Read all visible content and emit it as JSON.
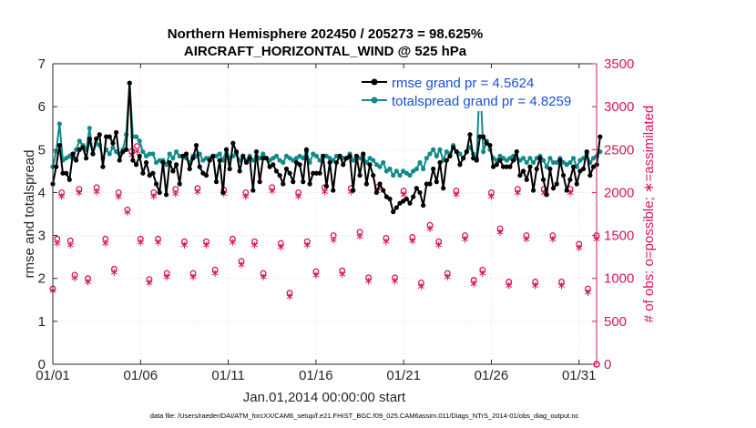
{
  "chart_data": {
    "type": "line",
    "title_line1": "Northern Hemisphere 202450 / 205273 = 98.625%",
    "title_line2": "AIRCRAFT_HORIZONTAL_WIND @ 525 hPa",
    "xlabel": "Jan.01,2014 00:00:00 start",
    "ylabel_left": "rmse and totalspread",
    "ylabel_right": "# of obs: o=possible; ∗=assimilated",
    "footer": "data file: /Users/raeder/DAI/ATM_forcXX/CAM6_setup/f.e21.FHIST_BGC.f09_025.CAM6assim.011/Diags_NTrS_2014-01/obs_diag_output.nc",
    "x_tick_labels": [
      "01/01",
      "01/06",
      "01/11",
      "01/16",
      "01/21",
      "01/26",
      "01/31"
    ],
    "x_tick_days": [
      1,
      6,
      11,
      16,
      21,
      26,
      31
    ],
    "xlim": [
      1,
      32
    ],
    "ylim_left": [
      0,
      7
    ],
    "left_ticks": [
      "0",
      "1",
      "2",
      "3",
      "4",
      "5",
      "6",
      "7"
    ],
    "ylim_right": [
      0,
      3500
    ],
    "right_ticks": [
      "0",
      "500",
      "1000",
      "1500",
      "2000",
      "2500",
      "3000",
      "3500"
    ],
    "legend_position": "top-right",
    "colors": {
      "rmse": "#000000",
      "spread": "#118a8a",
      "obs": "#d4145a"
    },
    "series": [
      {
        "name": "rmse grand pr = 4.5624",
        "values": [
          4.2,
          4.6,
          5.1,
          4.45,
          4.45,
          4.3,
          4.9,
          4.75,
          5.0,
          5.05,
          4.8,
          5.25,
          4.9,
          5.25,
          5.35,
          4.6,
          5.3,
          5.3,
          5.15,
          5.4,
          4.75,
          4.95,
          5.0,
          6.55,
          4.75,
          4.65,
          4.85,
          4.45,
          4.7,
          4.4,
          4.45,
          4.2,
          4.0,
          4.7,
          3.95,
          4.7,
          4.5,
          4.65,
          4.2,
          4.85,
          4.9,
          4.55,
          4.8,
          5.1,
          4.6,
          4.45,
          4.4,
          4.75,
          4.85,
          4.25,
          4.75,
          4.0,
          5.0,
          4.55,
          5.15,
          4.95,
          4.5,
          4.85,
          4.7,
          4.8,
          4.05,
          4.95,
          4.25,
          4.8,
          4.8,
          4.6,
          4.65,
          4.5,
          4.4,
          4.2,
          4.55,
          4.45,
          4.25,
          4.7,
          4.65,
          4.25,
          5.0,
          4.2,
          4.45,
          4.45,
          4.45,
          4.85,
          4.15,
          4.7,
          4.05,
          4.7,
          4.85,
          4.65,
          4.8,
          4.85,
          4.05,
          4.85,
          4.4,
          4.9,
          4.2,
          4.65,
          4.4,
          4.0,
          4.2,
          4.05,
          3.9,
          3.85,
          3.55,
          3.65,
          3.75,
          3.8,
          3.85,
          3.75,
          3.9,
          4.1,
          4.0,
          3.7,
          4.2,
          4.2,
          4.55,
          4.25,
          4.7,
          4.1,
          4.75,
          4.85,
          5.05,
          4.95,
          4.65,
          4.8,
          4.95,
          5.35,
          4.8,
          4.75,
          5.3,
          5.3,
          5.15,
          5.1,
          4.6,
          4.65,
          4.75,
          4.6,
          4.6,
          4.6,
          4.75,
          4.95,
          4.4,
          4.5,
          4.3,
          4.6,
          4.05,
          4.55,
          4.8,
          4.3,
          3.95,
          4.55,
          4.1,
          4.2,
          4.75,
          4.4,
          4.05,
          4.3,
          4.6,
          4.2,
          4.5,
          4.55,
          4.95,
          4.4,
          4.6,
          4.65,
          5.3
        ]
      },
      {
        "name": "totalspread grand pr = 4.8259",
        "values": [
          4.6,
          4.95,
          5.6,
          4.75,
          4.8,
          4.85,
          4.8,
          5.0,
          5.2,
          5.1,
          5.0,
          5.5,
          4.9,
          5.15,
          5.1,
          4.8,
          5.0,
          4.9,
          5.05,
          4.95,
          4.9,
          5.0,
          5.35,
          6.55,
          5.3,
          5.3,
          5.2,
          4.95,
          4.85,
          4.9,
          4.9,
          4.7,
          4.75,
          4.75,
          4.65,
          4.9,
          4.8,
          4.95,
          4.85,
          4.85,
          4.8,
          4.7,
          4.85,
          4.85,
          4.9,
          4.75,
          4.8,
          4.8,
          4.85,
          4.85,
          4.9,
          4.75,
          5.0,
          4.8,
          4.85,
          4.9,
          4.75,
          4.85,
          4.75,
          4.85,
          4.75,
          4.85,
          4.8,
          4.9,
          4.8,
          4.75,
          4.8,
          4.85,
          4.75,
          4.7,
          4.85,
          4.8,
          4.75,
          4.8,
          4.85,
          4.8,
          4.95,
          4.7,
          4.9,
          4.85,
          4.75,
          4.85,
          4.85,
          4.8,
          4.75,
          4.85,
          4.85,
          4.8,
          4.8,
          4.9,
          4.75,
          4.85,
          4.8,
          4.85,
          4.7,
          4.8,
          4.75,
          4.65,
          4.6,
          4.7,
          4.5,
          4.55,
          4.4,
          4.5,
          4.4,
          4.5,
          4.45,
          4.4,
          4.5,
          4.55,
          4.7,
          4.55,
          4.8,
          4.9,
          5.0,
          4.85,
          5.0,
          4.75,
          4.95,
          4.9,
          5.1,
          4.95,
          4.9,
          4.8,
          4.95,
          5.05,
          4.9,
          4.8,
          6.7,
          4.95,
          5.2,
          5.0,
          4.8,
          4.75,
          4.85,
          4.8,
          4.75,
          4.8,
          4.85,
          4.8,
          4.75,
          4.8,
          4.7,
          4.8,
          4.7,
          4.8,
          4.85,
          4.75,
          4.6,
          4.8,
          4.7,
          4.7,
          4.8,
          4.7,
          4.65,
          4.7,
          4.8,
          4.6,
          4.75,
          4.8,
          4.9,
          4.7,
          4.8,
          4.85,
          4.95
        ]
      }
    ],
    "obs_possible": [
      [
        1.0,
        880
      ],
      [
        1.25,
        1460
      ],
      [
        1.5,
        2000
      ],
      [
        2.0,
        1440
      ],
      [
        2.25,
        1040
      ],
      [
        2.5,
        2040
      ],
      [
        3.0,
        1000
      ],
      [
        3.5,
        2060
      ],
      [
        4.0,
        1460
      ],
      [
        4.5,
        1110
      ],
      [
        4.75,
        2000
      ],
      [
        5.25,
        1800
      ],
      [
        5.5,
        2480
      ],
      [
        5.8,
        2540
      ],
      [
        6.0,
        1460
      ],
      [
        6.5,
        990
      ],
      [
        6.75,
        2000
      ],
      [
        7.0,
        1460
      ],
      [
        7.5,
        1060
      ],
      [
        8.0,
        2040
      ],
      [
        8.5,
        1430
      ],
      [
        9.0,
        1060
      ],
      [
        9.25,
        2050
      ],
      [
        9.75,
        1430
      ],
      [
        10.25,
        1100
      ],
      [
        10.75,
        2030
      ],
      [
        11.25,
        1460
      ],
      [
        11.75,
        1200
      ],
      [
        12.0,
        2000
      ],
      [
        12.5,
        1430
      ],
      [
        13.0,
        1060
      ],
      [
        13.5,
        2060
      ],
      [
        14.0,
        1410
      ],
      [
        14.5,
        830
      ],
      [
        15.0,
        2000
      ],
      [
        15.5,
        1430
      ],
      [
        16.0,
        1080
      ],
      [
        16.5,
        2060
      ],
      [
        17.0,
        1500
      ],
      [
        17.5,
        1090
      ],
      [
        18.0,
        2050
      ],
      [
        18.5,
        1540
      ],
      [
        19.0,
        1010
      ],
      [
        19.5,
        2060
      ],
      [
        20.0,
        1470
      ],
      [
        20.5,
        1010
      ],
      [
        21.0,
        2020
      ],
      [
        21.5,
        1480
      ],
      [
        22.0,
        950
      ],
      [
        22.5,
        1620
      ],
      [
        23.0,
        1430
      ],
      [
        23.5,
        1060
      ],
      [
        24.0,
        2020
      ],
      [
        24.5,
        1500
      ],
      [
        25.0,
        980
      ],
      [
        25.5,
        1100
      ],
      [
        26.0,
        2000
      ],
      [
        26.5,
        1580
      ],
      [
        27.0,
        960
      ],
      [
        27.5,
        2040
      ],
      [
        28.0,
        1500
      ],
      [
        28.5,
        960
      ],
      [
        29.0,
        2040
      ],
      [
        29.5,
        1500
      ],
      [
        30.0,
        960
      ],
      [
        30.5,
        2040
      ],
      [
        31.0,
        1400
      ],
      [
        31.5,
        880
      ],
      [
        32.0,
        1500
      ]
    ],
    "obs_assimilated": [
      [
        1.0,
        870
      ],
      [
        1.25,
        1420
      ],
      [
        1.5,
        1970
      ],
      [
        2.0,
        1400
      ],
      [
        2.25,
        1020
      ],
      [
        2.5,
        2010
      ],
      [
        3.0,
        970
      ],
      [
        3.5,
        2020
      ],
      [
        4.0,
        1420
      ],
      [
        4.5,
        1080
      ],
      [
        4.75,
        1960
      ],
      [
        5.25,
        1780
      ],
      [
        5.5,
        2450
      ],
      [
        5.8,
        2490
      ],
      [
        6.0,
        1430
      ],
      [
        6.5,
        960
      ],
      [
        6.75,
        1970
      ],
      [
        7.0,
        1430
      ],
      [
        7.5,
        1030
      ],
      [
        8.0,
        2000
      ],
      [
        8.5,
        1400
      ],
      [
        9.0,
        1030
      ],
      [
        9.25,
        2020
      ],
      [
        9.75,
        1400
      ],
      [
        10.25,
        1070
      ],
      [
        10.75,
        2000
      ],
      [
        11.25,
        1430
      ],
      [
        11.75,
        1170
      ],
      [
        12.0,
        1970
      ],
      [
        12.5,
        1400
      ],
      [
        13.0,
        1030
      ],
      [
        13.5,
        2030
      ],
      [
        14.0,
        1380
      ],
      [
        14.5,
        800
      ],
      [
        15.0,
        1970
      ],
      [
        15.5,
        1400
      ],
      [
        16.0,
        1050
      ],
      [
        16.5,
        2020
      ],
      [
        17.0,
        1460
      ],
      [
        17.5,
        1060
      ],
      [
        18.0,
        2020
      ],
      [
        18.5,
        1500
      ],
      [
        19.0,
        980
      ],
      [
        19.5,
        2030
      ],
      [
        20.0,
        1440
      ],
      [
        20.5,
        980
      ],
      [
        21.0,
        1990
      ],
      [
        21.5,
        1450
      ],
      [
        22.0,
        920
      ],
      [
        22.5,
        1590
      ],
      [
        23.0,
        1400
      ],
      [
        23.5,
        1030
      ],
      [
        24.0,
        1990
      ],
      [
        24.5,
        1470
      ],
      [
        25.0,
        950
      ],
      [
        25.5,
        1070
      ],
      [
        26.0,
        1970
      ],
      [
        26.5,
        1550
      ],
      [
        27.0,
        930
      ],
      [
        27.5,
        2010
      ],
      [
        28.0,
        1470
      ],
      [
        28.5,
        930
      ],
      [
        29.0,
        2010
      ],
      [
        29.5,
        1470
      ],
      [
        30.0,
        930
      ],
      [
        30.5,
        2010
      ],
      [
        31.0,
        1370
      ],
      [
        31.5,
        850
      ],
      [
        32.0,
        1470
      ]
    ]
  }
}
